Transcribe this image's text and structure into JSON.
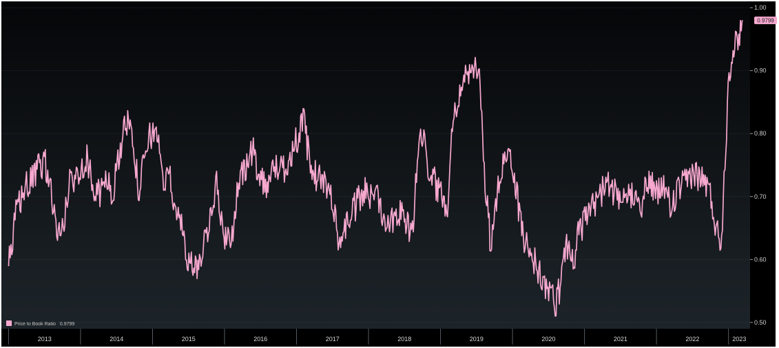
{
  "title": "",
  "legend": {
    "label": "Price to Book Ratio",
    "value": "0.9799"
  },
  "last_value_label": "0.9799",
  "colors": {
    "series": "#f7a8cf",
    "background_top": "#050608",
    "background_bottom": "#1d2429",
    "grid": "#40474f"
  },
  "chart_data": {
    "type": "line",
    "title": "",
    "xlabel": "",
    "ylabel": "",
    "x_ticks": [
      "2013",
      "2014",
      "2015",
      "2016",
      "2017",
      "2018",
      "2019",
      "2020",
      "2021",
      "2022",
      "2023"
    ],
    "y_ticks": [
      "0.50",
      "0.60",
      "0.70",
      "0.80",
      "0.90",
      "1.00"
    ],
    "xlim": [
      2012.9,
      2023.3
    ],
    "ylim": [
      0.49,
      1.01
    ],
    "grid": true,
    "legend_position": "bottom-left",
    "series": [
      {
        "name": "Price to Book Ratio",
        "last": 0.9799,
        "x": [
          2013.0,
          2013.05,
          2013.1,
          2013.2,
          2013.3,
          2013.4,
          2013.5,
          2013.6,
          2013.65,
          2013.7,
          2013.75,
          2013.8,
          2013.85,
          2013.9,
          2014.0,
          2014.1,
          2014.2,
          2014.3,
          2014.4,
          2014.45,
          2014.5,
          2014.6,
          2014.7,
          2014.8,
          2014.9,
          2014.95,
          2015.0,
          2015.05,
          2015.1,
          2015.15,
          2015.2,
          2015.25,
          2015.3,
          2015.4,
          2015.5,
          2015.6,
          2015.7,
          2015.8,
          2015.85,
          2015.9,
          2015.95,
          2016.0,
          2016.05,
          2016.1,
          2016.2,
          2016.3,
          2016.4,
          2016.5,
          2016.6,
          2016.7,
          2016.8,
          2016.9,
          2017.0,
          2017.1,
          2017.2,
          2017.3,
          2017.4,
          2017.5,
          2017.55,
          2017.6,
          2017.65,
          2017.7,
          2017.8,
          2017.9,
          2017.95,
          2018.0,
          2018.1,
          2018.2,
          2018.3,
          2018.4,
          2018.5,
          2018.6,
          2018.7,
          2018.75,
          2018.8,
          2018.9,
          2019.0,
          2019.1,
          2019.15,
          2019.2,
          2019.25,
          2019.3,
          2019.35,
          2019.4,
          2019.45,
          2019.5,
          2019.55,
          2019.6,
          2019.65,
          2019.7,
          2019.75,
          2019.8,
          2019.9,
          2020.0,
          2020.05,
          2020.1,
          2020.15,
          2020.2,
          2020.3,
          2020.4,
          2020.5,
          2020.55,
          2020.6,
          2020.65,
          2020.7,
          2020.75,
          2020.8,
          2020.85,
          2020.9,
          2021.0,
          2021.1,
          2021.2,
          2021.3,
          2021.4,
          2021.5,
          2021.6,
          2021.7,
          2021.8,
          2021.9,
          2022.0,
          2022.1,
          2022.2,
          2022.3,
          2022.4,
          2022.5,
          2022.6,
          2022.7,
          2022.75,
          2022.8,
          2022.85,
          2022.9,
          2022.95,
          2023.0,
          2023.05,
          2023.1,
          2023.15,
          2023.2
        ],
        "y": [
          0.59,
          0.62,
          0.67,
          0.71,
          0.72,
          0.74,
          0.76,
          0.7,
          0.66,
          0.64,
          0.65,
          0.68,
          0.73,
          0.72,
          0.75,
          0.76,
          0.7,
          0.71,
          0.73,
          0.69,
          0.75,
          0.8,
          0.83,
          0.71,
          0.76,
          0.79,
          0.8,
          0.81,
          0.78,
          0.7,
          0.76,
          0.72,
          0.69,
          0.65,
          0.6,
          0.58,
          0.62,
          0.67,
          0.7,
          0.72,
          0.66,
          0.64,
          0.63,
          0.64,
          0.72,
          0.75,
          0.77,
          0.73,
          0.72,
          0.75,
          0.74,
          0.76,
          0.79,
          0.82,
          0.74,
          0.73,
          0.72,
          0.7,
          0.65,
          0.63,
          0.64,
          0.66,
          0.68,
          0.7,
          0.71,
          0.69,
          0.72,
          0.67,
          0.66,
          0.68,
          0.67,
          0.63,
          0.79,
          0.8,
          0.76,
          0.73,
          0.7,
          0.69,
          0.8,
          0.84,
          0.86,
          0.88,
          0.89,
          0.9,
          0.88,
          0.91,
          0.89,
          0.76,
          0.68,
          0.62,
          0.66,
          0.71,
          0.78,
          0.75,
          0.71,
          0.67,
          0.64,
          0.62,
          0.6,
          0.57,
          0.55,
          0.54,
          0.53,
          0.55,
          0.6,
          0.63,
          0.61,
          0.59,
          0.64,
          0.66,
          0.68,
          0.7,
          0.72,
          0.71,
          0.68,
          0.7,
          0.71,
          0.69,
          0.73,
          0.7,
          0.72,
          0.68,
          0.71,
          0.72,
          0.74,
          0.73,
          0.72,
          0.7,
          0.67,
          0.64,
          0.63,
          0.75,
          0.89,
          0.93,
          0.94,
          0.96,
          0.98
        ]
      }
    ]
  }
}
